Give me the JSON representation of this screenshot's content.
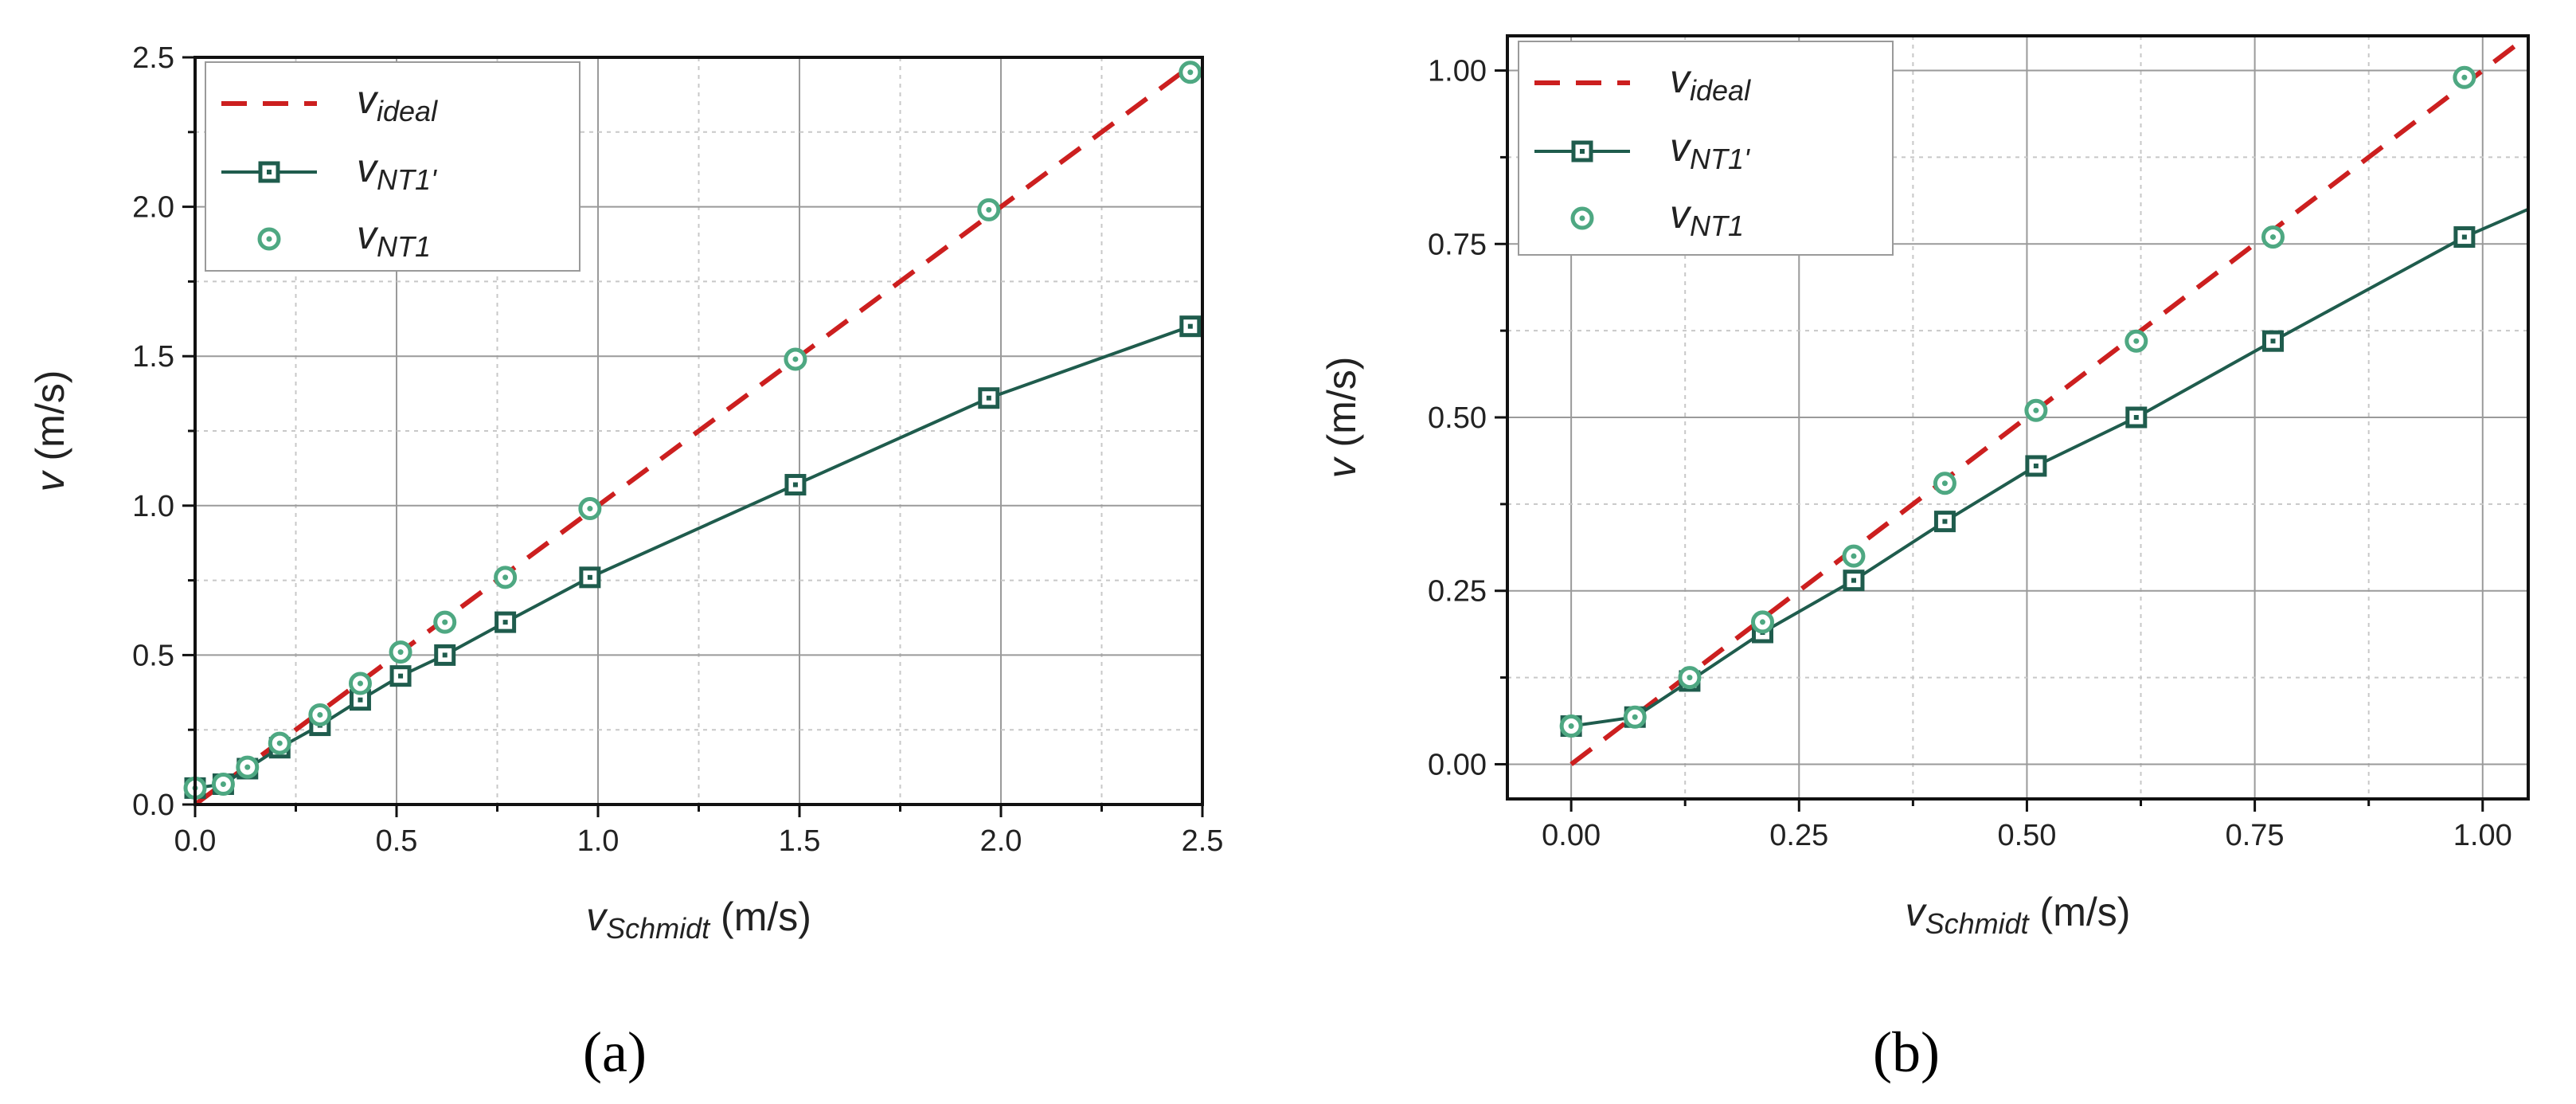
{
  "colors": {
    "ideal": "#cc1f1f",
    "nt1prime": "#1f5c4d",
    "nt1": "#4ea882",
    "grid_major": "#9a9a9a",
    "grid_minor": "#c8c8c8",
    "axis": "#111111"
  },
  "chart_data": [
    {
      "id": "a",
      "type": "line",
      "caption": "(a)",
      "xlabel": {
        "main": "v",
        "sub": "Schmidt",
        "unit": " (m/s)"
      },
      "ylabel": {
        "main": "v",
        "unit": " (m/s)"
      },
      "xlim": [
        0,
        2.5
      ],
      "ylim": [
        0,
        2.5
      ],
      "xticks": [
        "0.0",
        "0.5",
        "1.0",
        "1.5",
        "2.0",
        "2.5"
      ],
      "yticks": [
        "0.0",
        "0.5",
        "1.0",
        "1.5",
        "2.0",
        "2.5"
      ],
      "xtick_values": [
        0,
        0.5,
        1.0,
        1.5,
        2.0,
        2.5
      ],
      "ytick_values": [
        0,
        0.5,
        1.0,
        1.5,
        2.0,
        2.5
      ],
      "grid": true,
      "legend_position": "top-left",
      "series": [
        {
          "key": "ideal",
          "name": "v",
          "sub": "ideal",
          "style": "dashed",
          "x": [
            0,
            2.47
          ],
          "y": [
            0,
            2.47
          ]
        },
        {
          "key": "nt1prime",
          "name": "v",
          "sub": "NT1'",
          "style": "line-square",
          "x": [
            0,
            0.07,
            0.13,
            0.21,
            0.31,
            0.41,
            0.51,
            0.62,
            0.77,
            0.98,
            1.49,
            1.97,
            2.47
          ],
          "y": [
            0.055,
            0.068,
            0.12,
            0.19,
            0.265,
            0.35,
            0.43,
            0.5,
            0.61,
            0.76,
            1.07,
            1.36,
            1.6
          ]
        },
        {
          "key": "nt1",
          "name": "v",
          "sub": "NT1",
          "style": "circle",
          "x": [
            0,
            0.07,
            0.13,
            0.21,
            0.31,
            0.41,
            0.51,
            0.62,
            0.77,
            0.98,
            1.49,
            1.97,
            2.47
          ],
          "y": [
            0.055,
            0.068,
            0.125,
            0.205,
            0.3,
            0.405,
            0.51,
            0.61,
            0.76,
            0.99,
            1.49,
            1.99,
            2.45
          ]
        }
      ]
    },
    {
      "id": "b",
      "type": "line",
      "caption": "(b)",
      "xlabel": {
        "main": "v",
        "sub": "Schmidt",
        "unit": " (m/s)"
      },
      "ylabel": {
        "main": "v",
        "unit": " (m/s)"
      },
      "xlim": [
        -0.07,
        1.05
      ],
      "ylim": [
        -0.05,
        1.05
      ],
      "xticks": [
        "0.00",
        "0.25",
        "0.50",
        "0.75",
        "1.00"
      ],
      "yticks": [
        "0.00",
        "0.25",
        "0.50",
        "0.75",
        "1.00"
      ],
      "xtick_values": [
        0,
        0.25,
        0.5,
        0.75,
        1.0
      ],
      "ytick_values": [
        0,
        0.25,
        0.5,
        0.75,
        1.0
      ],
      "grid": true,
      "legend_position": "top-left",
      "series": [
        {
          "key": "ideal",
          "name": "v",
          "sub": "ideal",
          "style": "dashed",
          "x": [
            0,
            1.05
          ],
          "y": [
            0,
            1.05
          ]
        },
        {
          "key": "nt1prime",
          "name": "v",
          "sub": "NT1'",
          "style": "line-square",
          "x": [
            0,
            0.07,
            0.13,
            0.21,
            0.31,
            0.41,
            0.51,
            0.62,
            0.77,
            0.98,
            1.05
          ],
          "y": [
            0.055,
            0.068,
            0.12,
            0.19,
            0.265,
            0.35,
            0.43,
            0.5,
            0.61,
            0.76,
            0.8
          ],
          "marker_count": 10
        },
        {
          "key": "nt1",
          "name": "v",
          "sub": "NT1",
          "style": "circle",
          "x": [
            0,
            0.07,
            0.13,
            0.21,
            0.31,
            0.41,
            0.51,
            0.62,
            0.77,
            0.98
          ],
          "y": [
            0.055,
            0.068,
            0.125,
            0.205,
            0.3,
            0.405,
            0.51,
            0.61,
            0.76,
            0.99
          ]
        }
      ]
    }
  ]
}
